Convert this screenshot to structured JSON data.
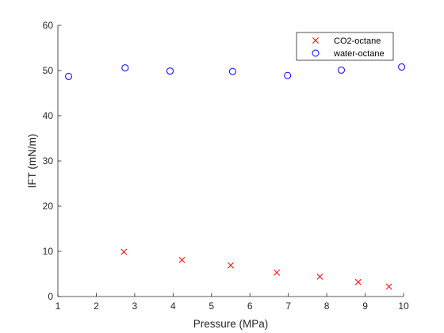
{
  "chart_data": {
    "type": "scatter",
    "title": "",
    "xlabel": "Pressure (MPa)",
    "ylabel": "IFT (mN/m)",
    "xlim": [
      1,
      10
    ],
    "ylim": [
      0,
      60
    ],
    "xticks": [
      "1",
      "2",
      "3",
      "4",
      "5",
      "6",
      "7",
      "8",
      "9",
      "10"
    ],
    "yticks": [
      "0",
      "10",
      "20",
      "30",
      "40",
      "50",
      "60"
    ],
    "grid": false,
    "legend_position": "top-right",
    "series": [
      {
        "name": "CO2-octane",
        "marker": "x",
        "color": "#ff0000",
        "x": [
          2.72,
          4.23,
          5.5,
          6.7,
          7.82,
          8.82,
          9.62
        ],
        "y": [
          9.9,
          8.1,
          6.9,
          5.3,
          4.4,
          3.2,
          2.2
        ]
      },
      {
        "name": "water-octane",
        "marker": "circle",
        "color": "#0000ff",
        "x": [
          1.28,
          2.75,
          3.92,
          5.55,
          6.98,
          8.38,
          9.95
        ],
        "y": [
          48.7,
          50.6,
          49.9,
          49.8,
          48.9,
          50.1,
          50.8
        ]
      }
    ]
  }
}
